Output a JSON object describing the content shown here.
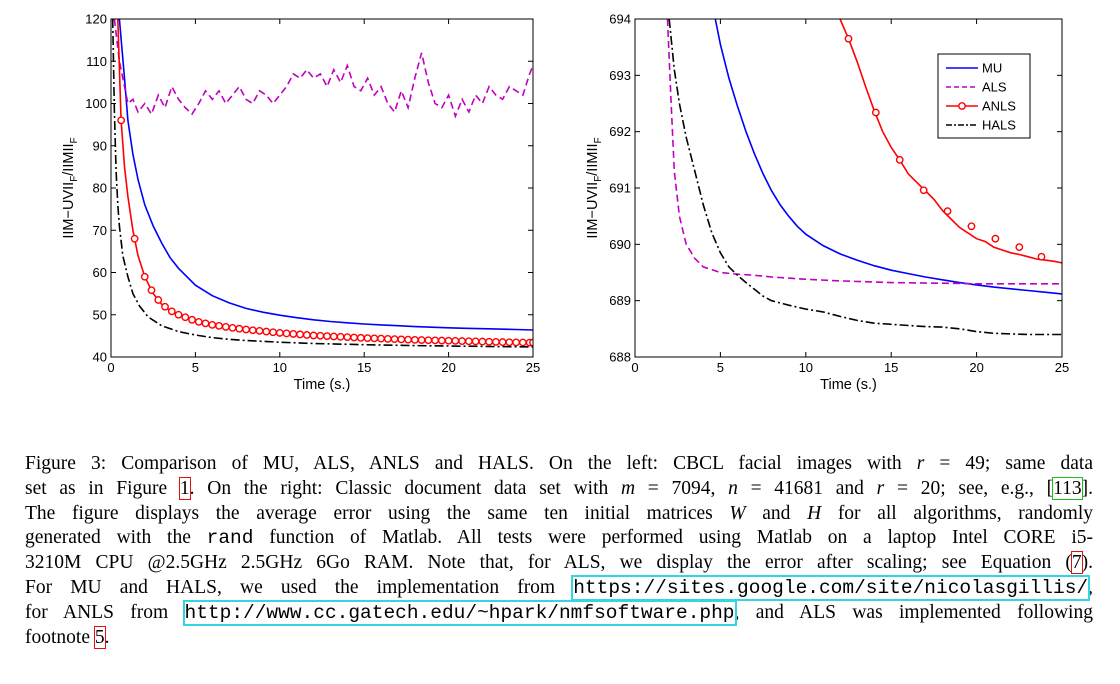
{
  "colors": {
    "MU": "#0000ff",
    "ALS": "#c000c0",
    "ANLS": "#ff0000",
    "HALS": "#000000",
    "link_box": "#33d6e0",
    "ref_red": "#e01010",
    "ref_green": "#18c018"
  },
  "chart_data": [
    {
      "type": "line",
      "xlabel": "Time (s.)",
      "ylabel": "||M−UV||_F/||M||_F",
      "ylabel_main": "IIM−UVII",
      "ylabel_sub1": "F",
      "ylabel_mid": "/IIMII",
      "ylabel_sub2": "F",
      "xlim": [
        0,
        25
      ],
      "ylim": [
        40,
        120
      ],
      "xticks": [
        "0",
        "5",
        "10",
        "15",
        "20",
        "25"
      ],
      "yticks": [
        "40",
        "50",
        "60",
        "70",
        "80",
        "90",
        "100",
        "110",
        "120"
      ],
      "series": [
        {
          "name": "MU",
          "style": "solid",
          "x": [
            0.5,
            0.8,
            1,
            1.3,
            1.6,
            2,
            2.5,
            3,
            3.5,
            4,
            5,
            6,
            7,
            8,
            9,
            10,
            11,
            12,
            13,
            14,
            15,
            16,
            17,
            18,
            19,
            20,
            21,
            22,
            23,
            24,
            25
          ],
          "y": [
            120,
            106,
            96,
            88,
            82,
            76,
            71,
            67,
            63.5,
            61,
            57,
            54.5,
            52.8,
            51.5,
            50.6,
            49.9,
            49.3,
            48.8,
            48.4,
            48.1,
            47.8,
            47.6,
            47.4,
            47.2,
            47.05,
            46.9,
            46.8,
            46.7,
            46.6,
            46.5,
            46.4
          ]
        },
        {
          "name": "ALS",
          "style": "dashed",
          "x": [
            0.2,
            0.5,
            0.8,
            1,
            1.3,
            1.6,
            2,
            2.4,
            2.8,
            3.2,
            3.6,
            4,
            4.4,
            4.8,
            5.2,
            5.6,
            6,
            6.4,
            6.8,
            7.2,
            7.6,
            8,
            8.4,
            8.8,
            9.2,
            9.6,
            10,
            10.4,
            10.8,
            11.2,
            11.6,
            12,
            12.4,
            12.8,
            13.2,
            13.6,
            14,
            14.4,
            14.8,
            15.2,
            15.6,
            16,
            16.4,
            16.8,
            17.2,
            17.6,
            18,
            18.4,
            18.8,
            19.2,
            19.6,
            20,
            20.4,
            20.8,
            21.2,
            21.6,
            22,
            22.4,
            22.8,
            23.2,
            23.6,
            24,
            24.4,
            24.8,
            25
          ],
          "y": [
            120,
            110,
            104,
            100,
            101,
            98,
            100,
            97.5,
            102,
            99,
            104,
            101,
            99,
            97.5,
            100,
            103,
            101,
            103,
            100,
            102,
            104,
            101,
            100,
            103,
            102,
            100,
            102,
            104,
            107,
            106,
            108,
            106,
            107,
            104,
            108,
            105,
            109,
            104,
            103,
            106,
            102,
            104,
            100,
            98,
            103,
            99,
            106,
            112,
            105,
            100,
            99,
            102,
            97,
            101,
            98,
            102,
            100,
            104,
            102,
            101,
            104,
            103,
            102,
            107,
            109
          ]
        },
        {
          "name": "ANLS",
          "style": "solid-circle",
          "x": [
            0.4,
            0.6,
            0.8,
            1,
            1.3,
            1.6,
            2,
            2.5,
            3,
            3.5,
            4,
            5,
            6,
            7,
            8,
            9,
            10,
            11,
            12,
            13,
            14,
            15,
            16,
            17,
            18,
            19,
            20,
            21,
            22,
            23,
            24,
            25
          ],
          "y": [
            120,
            96,
            85,
            78,
            70,
            64,
            59,
            55,
            52.5,
            51,
            50,
            48.5,
            47.6,
            47,
            46.5,
            46.1,
            45.7,
            45.4,
            45.1,
            44.9,
            44.7,
            44.5,
            44.35,
            44.2,
            44.05,
            43.95,
            43.85,
            43.75,
            43.65,
            43.55,
            43.45,
            43.4
          ],
          "markers_x": [
            0.6,
            1.4,
            2,
            2.4,
            2.8,
            3.2,
            3.6,
            4,
            4.4,
            4.8,
            5.2,
            5.6,
            6,
            6.4,
            6.8,
            7.2,
            7.6,
            8,
            8.4,
            8.8,
            9.2,
            9.6,
            10,
            10.4,
            10.8,
            11.2,
            11.6,
            12,
            12.4,
            12.8,
            13.2,
            13.6,
            14,
            14.4,
            14.8,
            15.2,
            15.6,
            16,
            16.4,
            16.8,
            17.2,
            17.6,
            18,
            18.4,
            18.8,
            19.2,
            19.6,
            20,
            20.4,
            20.8,
            21.2,
            21.6,
            22,
            22.4,
            22.8,
            23.2,
            23.6,
            24,
            24.4,
            24.8,
            25
          ]
        },
        {
          "name": "HALS",
          "style": "dashdot",
          "x": [
            0.1,
            0.2,
            0.3,
            0.4,
            0.5,
            0.7,
            1,
            1.3,
            1.7,
            2.2,
            3,
            4,
            5,
            6,
            7,
            8,
            10,
            12,
            15,
            18,
            20,
            22,
            25
          ],
          "y": [
            120,
            98,
            84,
            76,
            71,
            64,
            59,
            55,
            52,
            49.5,
            47.4,
            46,
            45.2,
            44.6,
            44.2,
            43.9,
            43.5,
            43.2,
            42.9,
            42.7,
            42.6,
            42.5,
            42.4
          ]
        }
      ]
    },
    {
      "type": "line",
      "xlabel": "Time (s.)",
      "ylabel": "||M−UV||_F/||M||_F",
      "ylabel_main": "IIM−UVII",
      "ylabel_sub1": "F",
      "ylabel_mid": "/IIMII",
      "ylabel_sub2": "F",
      "xlim": [
        0,
        25
      ],
      "ylim": [
        688,
        694
      ],
      "xticks": [
        "0",
        "5",
        "10",
        "15",
        "20",
        "25"
      ],
      "yticks": [
        "688",
        "689",
        "690",
        "691",
        "692",
        "693",
        "694"
      ],
      "legend": {
        "placement": "top-right",
        "entries": [
          "MU",
          "ALS",
          "ANLS",
          "HALS"
        ]
      },
      "series": [
        {
          "name": "MU",
          "style": "solid",
          "x": [
            4.7,
            5,
            5.5,
            6,
            6.5,
            7,
            7.5,
            8,
            8.5,
            9,
            9.5,
            10,
            11,
            12,
            13,
            14,
            15,
            16,
            17,
            18,
            19,
            20,
            21,
            22,
            23,
            24,
            25
          ],
          "y": [
            694,
            693.55,
            692.95,
            692.45,
            692.0,
            691.6,
            691.25,
            690.95,
            690.7,
            690.5,
            690.32,
            690.18,
            689.98,
            689.83,
            689.72,
            689.62,
            689.54,
            689.48,
            689.42,
            689.37,
            689.32,
            689.28,
            689.24,
            689.21,
            689.18,
            689.15,
            689.12
          ]
        },
        {
          "name": "ALS",
          "style": "dashed",
          "x": [
            1.9,
            2.1,
            2.3,
            2.6,
            3,
            3.5,
            4,
            5,
            6,
            7,
            8,
            10,
            12,
            15,
            18,
            20,
            22,
            25
          ],
          "y": [
            694,
            692.6,
            691.3,
            690.5,
            690.0,
            689.75,
            689.6,
            689.5,
            689.47,
            689.45,
            689.42,
            689.38,
            689.35,
            689.32,
            689.31,
            689.3,
            689.3,
            689.3
          ]
        },
        {
          "name": "ANLS",
          "style": "solid-circle",
          "x": [
            12,
            12.5,
            13,
            13.5,
            14,
            14.5,
            15,
            15.5,
            16,
            16.5,
            17,
            17.5,
            18,
            18.5,
            19,
            19.5,
            20,
            20.5,
            21,
            21.5,
            22,
            22.5,
            23,
            23.5,
            24,
            24.5,
            25
          ],
          "y": [
            694,
            693.65,
            693.25,
            692.8,
            692.38,
            692.0,
            691.72,
            691.5,
            691.25,
            691.1,
            690.95,
            690.8,
            690.6,
            690.45,
            690.3,
            690.2,
            690.1,
            690.05,
            689.95,
            689.9,
            689.85,
            689.82,
            689.78,
            689.74,
            689.72,
            689.7,
            689.67
          ],
          "markers_x": [
            12.5,
            14.1,
            15.5,
            16.9,
            18.3,
            19.7,
            21.1,
            22.5,
            23.8
          ],
          "markers_y": [
            693.65,
            692.34,
            691.5,
            690.96,
            690.59,
            690.32,
            690.1,
            689.95,
            689.78
          ]
        },
        {
          "name": "HALS",
          "style": "dashdot",
          "x": [
            2.0,
            2.3,
            2.6,
            3,
            3.5,
            4,
            4.5,
            5,
            5.5,
            6,
            6.5,
            7,
            7.5,
            8,
            9,
            10,
            11,
            12,
            13,
            14,
            15,
            16,
            17,
            18,
            19,
            20,
            21,
            22,
            23,
            24,
            25
          ],
          "y": [
            694,
            693.1,
            692.5,
            691.9,
            691.3,
            690.7,
            690.2,
            689.85,
            689.6,
            689.45,
            689.32,
            689.2,
            689.08,
            689.0,
            688.92,
            688.85,
            688.8,
            688.72,
            688.65,
            688.6,
            688.58,
            688.56,
            688.54,
            688.53,
            688.5,
            688.45,
            688.42,
            688.41,
            688.4,
            688.4,
            688.4
          ]
        }
      ]
    }
  ],
  "caption": {
    "label": "Figure 3:",
    "l1a": " Comparison of MU, ALS, ANLS and HALS. On the left: CBCL facial images with ",
    "l1_r": "r",
    "l1_eq": " = 49; same data",
    "l2a": "set as in Figure ",
    "l2_ref1": "1",
    "l2b": ". On the right: Classic document data set with ",
    "l2_m": "m",
    "l2c": " = 7094, ",
    "l2_n": "n",
    "l2d": " = 41681 and ",
    "l2_r": "r",
    "l2e": " = 20; see, e.g., [",
    "l2_ref2": "113",
    "l2f": "].",
    "l3a": "The figure displays the average error using the same ten initial matrices ",
    "l3_W": "W",
    "l3b": " and ",
    "l3_H": "H",
    "l3c": " for all algorithms, randomly",
    "l4a": "generated with the ",
    "l4_code": "rand",
    "l4b": " function of Matlab. All tests were performed using Matlab on a laptop Intel CORE i5-",
    "l5a": "3210M CPU @2.5GHz 2.5GHz 6Go RAM. Note that, for ALS, we display the error after scaling; see Equation (",
    "l5_ref": "7",
    "l5b": ").",
    "l6a": "For MU and HALS, we used the implementation from ",
    "l6_url": "https://sites.google.com/site/nicolasgillis/",
    "l6b": ",",
    "l7a": "for ANLS from ",
    "l7_url": "http://www.cc.gatech.edu/~hpark/nmfsoftware.php",
    "l7b": ", and ALS was implemented following",
    "l8a": "footnote ",
    "l8_ref": "5",
    "l8b": "."
  }
}
